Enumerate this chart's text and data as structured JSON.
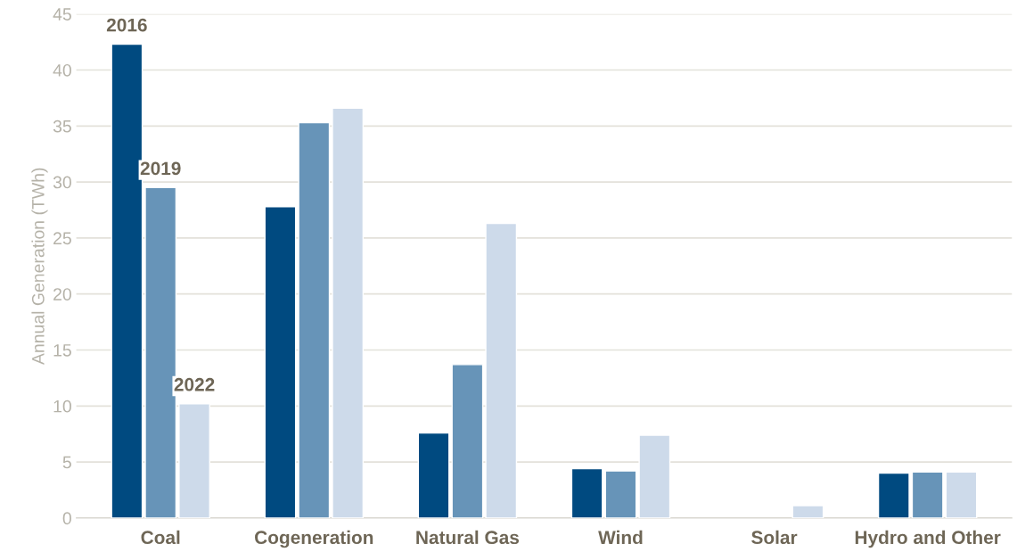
{
  "chart_data": {
    "type": "bar",
    "ylabel": "Annual Generation (TWh)",
    "categories": [
      "Coal",
      "Cogeneration",
      "Natural Gas",
      "Wind",
      "Solar",
      "Hydro and Other"
    ],
    "series": [
      {
        "name": "2016",
        "color": "#004a80",
        "values": [
          42.3,
          27.8,
          7.6,
          4.4,
          null,
          4.0
        ]
      },
      {
        "name": "2019",
        "color": "#6794b8",
        "values": [
          29.5,
          35.3,
          13.7,
          4.2,
          null,
          4.1
        ]
      },
      {
        "name": "2022",
        "color": "#cddaea",
        "values": [
          10.2,
          36.6,
          26.3,
          7.4,
          1.1,
          4.1
        ]
      }
    ],
    "ylim": [
      0,
      45
    ],
    "yticks": [
      0,
      5,
      10,
      15,
      20,
      25,
      30,
      35,
      40,
      45
    ],
    "grid": "y",
    "legend": false
  }
}
